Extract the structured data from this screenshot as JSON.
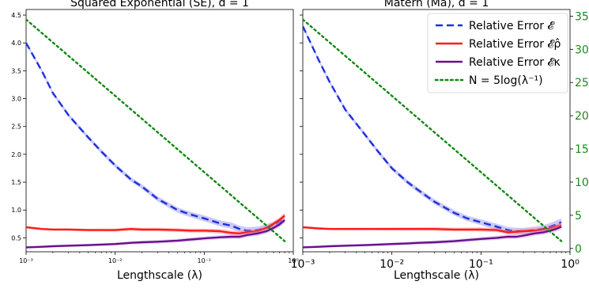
{
  "colors": {
    "relative_error": "#1f2fe0",
    "relative_error_rho": "#ff1a1a",
    "relative_error_kappa": "#6a0f8e",
    "n_line": "#118811",
    "band_red": "#ff7f7f",
    "band_blue": "#8c8cf0",
    "band_purple": "#c9a6de",
    "right_axis_ticks": "#1a8a1a"
  },
  "legend": {
    "items": [
      {
        "key": "E",
        "label": "Relative Error 𝓔",
        "style": "dashed",
        "color": "#1f2fe0"
      },
      {
        "key": "Erho",
        "label": "Relative Error 𝓔ρ̂",
        "style": "solid",
        "color": "#ff1a1a"
      },
      {
        "key": "Ekappa",
        "label": "Relative Error 𝓔κ",
        "style": "solid",
        "color": "#6a0f8e"
      },
      {
        "key": "N",
        "label": "N = 5log(λ⁻¹)",
        "style": "dotted",
        "color": "#118811"
      }
    ],
    "placement": "top-right"
  },
  "chart_data": [
    {
      "type": "line",
      "title": "Squared Exponential (SE), d = 1",
      "xlabel": "Lengthscale (λ)",
      "xscale": "log",
      "xlim": [
        0.001,
        1
      ],
      "ylim": [
        0.25,
        4.6
      ],
      "x_tick_labels": [
        "10⁻³",
        "10⁻²",
        "10⁻¹",
        "10⁰"
      ],
      "y_tick_labels": [
        "0.5",
        "1.0",
        "1.5",
        "2.0",
        "2.5",
        "3.0",
        "3.5",
        "4.0",
        "4.5"
      ],
      "y_ticks": [
        0.5,
        1.0,
        1.5,
        2.0,
        2.5,
        3.0,
        3.5,
        4.0,
        4.5
      ],
      "series": [
        {
          "key": "E",
          "x": [
            0.001,
            0.0015,
            0.002,
            0.003,
            0.005,
            0.007,
            0.01,
            0.015,
            0.02,
            0.03,
            0.05,
            0.07,
            0.1,
            0.15,
            0.2,
            0.25,
            0.3,
            0.4,
            0.5,
            0.6,
            0.7,
            0.8
          ],
          "values": [
            4.0,
            3.5,
            3.1,
            2.7,
            2.3,
            2.05,
            1.8,
            1.55,
            1.42,
            1.2,
            1.0,
            0.92,
            0.85,
            0.76,
            0.72,
            0.66,
            0.63,
            0.64,
            0.68,
            0.72,
            0.78,
            0.85
          ]
        },
        {
          "key": "Erho",
          "x": [
            0.001,
            0.0015,
            0.002,
            0.003,
            0.005,
            0.007,
            0.01,
            0.015,
            0.02,
            0.03,
            0.05,
            0.07,
            0.1,
            0.15,
            0.2,
            0.25,
            0.3,
            0.4,
            0.5,
            0.6,
            0.7,
            0.8
          ],
          "values": [
            0.69,
            0.66,
            0.65,
            0.65,
            0.64,
            0.64,
            0.64,
            0.66,
            0.65,
            0.65,
            0.64,
            0.63,
            0.63,
            0.62,
            0.59,
            0.58,
            0.6,
            0.62,
            0.68,
            0.75,
            0.82,
            0.9
          ]
        },
        {
          "key": "Ekappa",
          "x": [
            0.001,
            0.0015,
            0.002,
            0.003,
            0.005,
            0.007,
            0.01,
            0.015,
            0.02,
            0.03,
            0.05,
            0.07,
            0.1,
            0.15,
            0.2,
            0.25,
            0.3,
            0.4,
            0.5,
            0.6,
            0.7,
            0.8
          ],
          "values": [
            0.33,
            0.34,
            0.35,
            0.36,
            0.37,
            0.38,
            0.39,
            0.41,
            0.42,
            0.43,
            0.45,
            0.47,
            0.49,
            0.51,
            0.52,
            0.52,
            0.55,
            0.58,
            0.62,
            0.68,
            0.74,
            0.82
          ]
        },
        {
          "key": "N",
          "axis": "right",
          "x": [
            0.001,
            0.8
          ],
          "values": [
            34.5,
            1.1
          ]
        }
      ]
    },
    {
      "type": "line",
      "title": "Matérn (Ma), d = 1",
      "xlabel": "Lengthscale (λ)",
      "xscale": "log",
      "xlim": [
        0.001,
        1
      ],
      "ylim": [
        0.25,
        4.6
      ],
      "x_tick_labels": [
        "10⁻³",
        "10⁻²",
        "10⁻¹",
        "10⁰"
      ],
      "right_ylabel_ticks": [
        "0",
        "5",
        "10",
        "15",
        "20",
        "25",
        "30",
        "35"
      ],
      "right_ticks": [
        0,
        5,
        10,
        15,
        20,
        25,
        30,
        35
      ],
      "right_ylim": [
        -0.5,
        36
      ],
      "series": [
        {
          "key": "E",
          "x": [
            0.001,
            0.0015,
            0.002,
            0.003,
            0.005,
            0.007,
            0.01,
            0.015,
            0.02,
            0.03,
            0.05,
            0.07,
            0.1,
            0.15,
            0.2,
            0.25,
            0.3,
            0.4,
            0.5,
            0.6,
            0.7,
            0.8
          ],
          "values": [
            4.3,
            3.7,
            3.3,
            2.8,
            2.35,
            2.05,
            1.75,
            1.5,
            1.35,
            1.15,
            0.95,
            0.85,
            0.78,
            0.7,
            0.64,
            0.62,
            0.62,
            0.64,
            0.66,
            0.7,
            0.74,
            0.78
          ]
        },
        {
          "key": "Erho",
          "x": [
            0.001,
            0.0015,
            0.002,
            0.003,
            0.005,
            0.007,
            0.01,
            0.015,
            0.02,
            0.03,
            0.05,
            0.07,
            0.1,
            0.15,
            0.2,
            0.25,
            0.3,
            0.4,
            0.5,
            0.6,
            0.7,
            0.8
          ],
          "values": [
            0.69,
            0.67,
            0.66,
            0.66,
            0.66,
            0.66,
            0.66,
            0.66,
            0.66,
            0.66,
            0.65,
            0.65,
            0.65,
            0.64,
            0.6,
            0.61,
            0.62,
            0.63,
            0.65,
            0.67,
            0.7,
            0.73
          ]
        },
        {
          "key": "Ekappa",
          "x": [
            0.001,
            0.0015,
            0.002,
            0.003,
            0.005,
            0.007,
            0.01,
            0.015,
            0.02,
            0.03,
            0.05,
            0.07,
            0.1,
            0.15,
            0.2,
            0.25,
            0.3,
            0.4,
            0.5,
            0.6,
            0.7,
            0.8
          ],
          "values": [
            0.33,
            0.34,
            0.35,
            0.36,
            0.37,
            0.38,
            0.39,
            0.4,
            0.41,
            0.42,
            0.44,
            0.46,
            0.48,
            0.5,
            0.52,
            0.52,
            0.54,
            0.58,
            0.6,
            0.63,
            0.66,
            0.7
          ]
        },
        {
          "key": "N",
          "axis": "right",
          "x": [
            0.001,
            0.8
          ],
          "values": [
            34.5,
            1.1
          ]
        }
      ]
    }
  ]
}
